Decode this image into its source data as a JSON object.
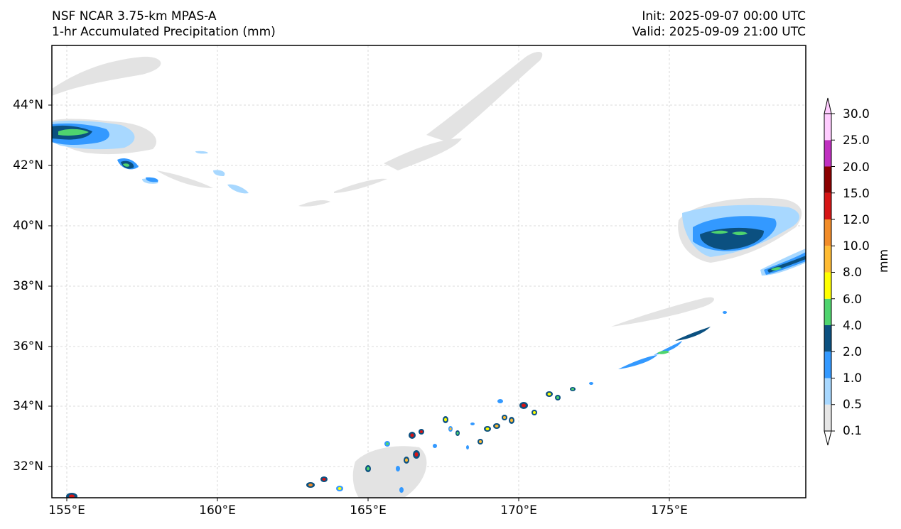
{
  "header": {
    "model": "NSF NCAR 3.75-km MPAS-A",
    "field": "1-hr Accumulated Precipitation (mm)",
    "init": "Init: 2025-09-07 00:00 UTC",
    "valid": "Valid: 2025-09-09 21:00 UTC"
  },
  "axes": {
    "lat_labels": [
      "44°N",
      "42°N",
      "40°N",
      "38°N",
      "36°N",
      "34°N",
      "32°N"
    ],
    "lon_labels": [
      "155°E",
      "160°E",
      "165°E",
      "170°E",
      "175°E"
    ]
  },
  "colorbar": {
    "units": "mm",
    "levels": [
      "0.1",
      "0.5",
      "1.0",
      "2.0",
      "4.0",
      "6.0",
      "8.0",
      "10.0",
      "12.0",
      "15.0",
      "20.0",
      "25.0",
      "30.0"
    ],
    "colors": [
      "#e6e6e6",
      "#a8d8ff",
      "#3399ff",
      "#0b5080",
      "#4fd46e",
      "#ffff00",
      "#ffbb33",
      "#f28c28",
      "#d61515",
      "#8b0000",
      "#c030c0",
      "#ffccff"
    ]
  }
}
